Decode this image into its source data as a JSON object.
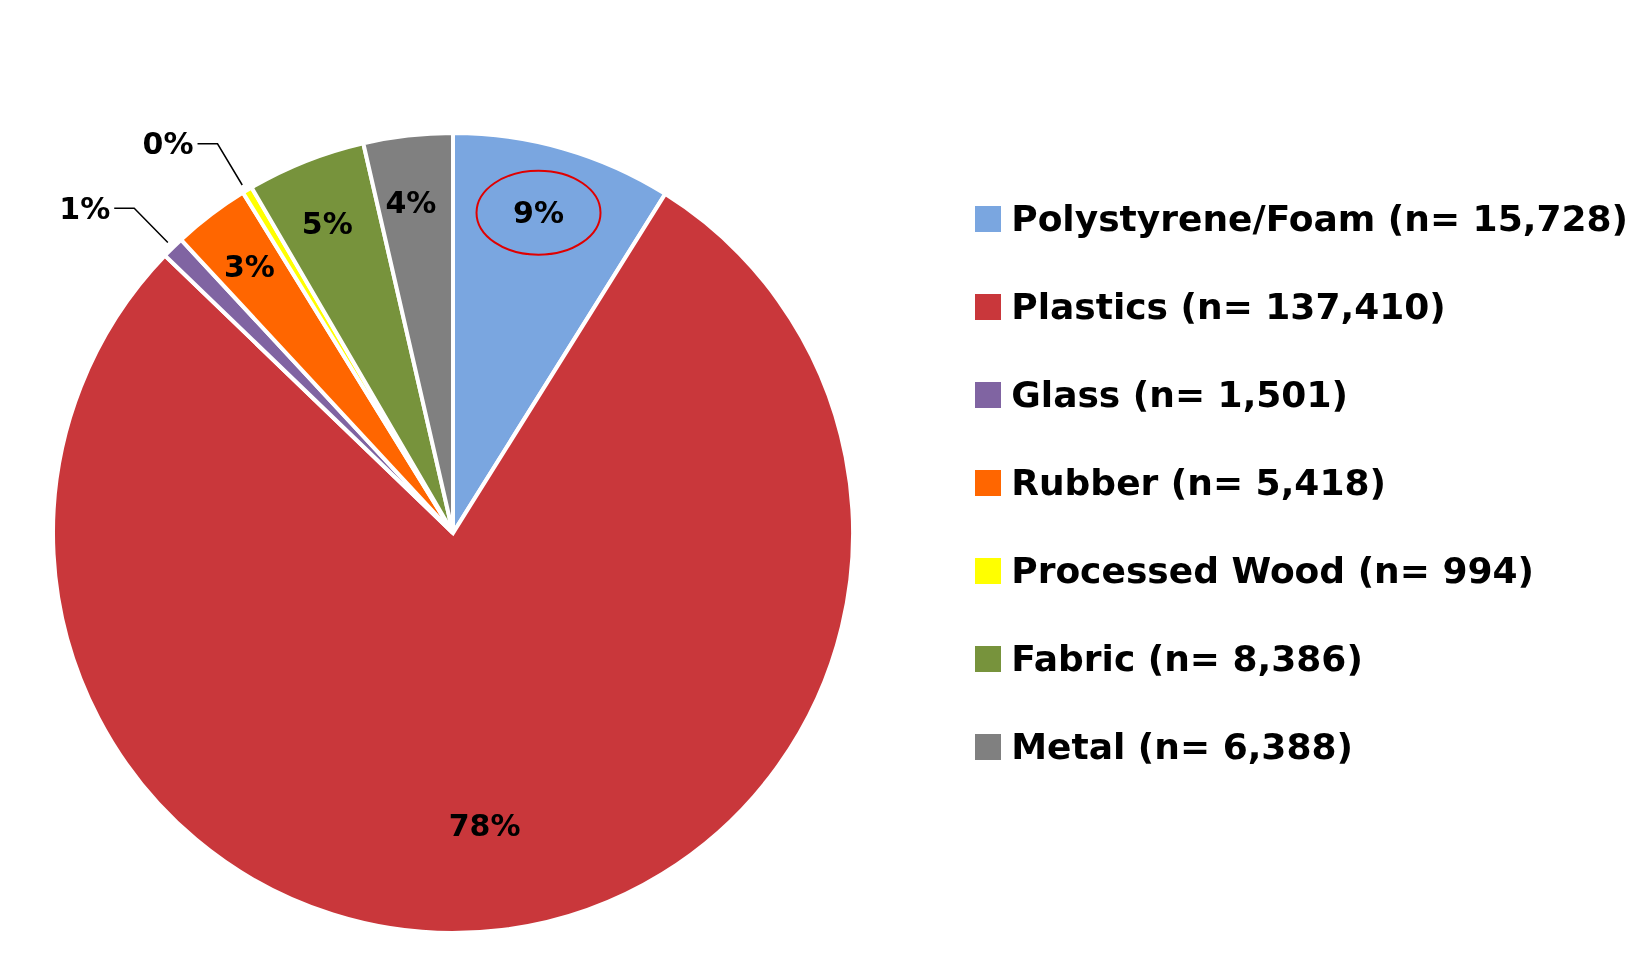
{
  "chart_data": {
    "type": "pie",
    "categories": [
      "Polystyrene/Foam (n= 15,728)",
      "Plastics (n= 137,410)",
      "Glass (n= 1,501)",
      "Rubber (n= 5,418)",
      "Processed Wood (n= 994)",
      "Fabric (n= 8,386)",
      "Metal (n= 6,388)"
    ],
    "values": [
      8.9,
      78.3,
      0.9,
      3.1,
      0.4,
      4.8,
      3.6
    ],
    "value_labels": [
      "9%",
      "78%",
      "1%",
      "3%",
      "0%",
      "5%",
      "4%"
    ],
    "colors": [
      "#7aa6e0",
      "#c9373b",
      "#8064a2",
      "#ff6600",
      "#ffff00",
      "#77933c",
      "#808080"
    ],
    "legend": "right"
  }
}
